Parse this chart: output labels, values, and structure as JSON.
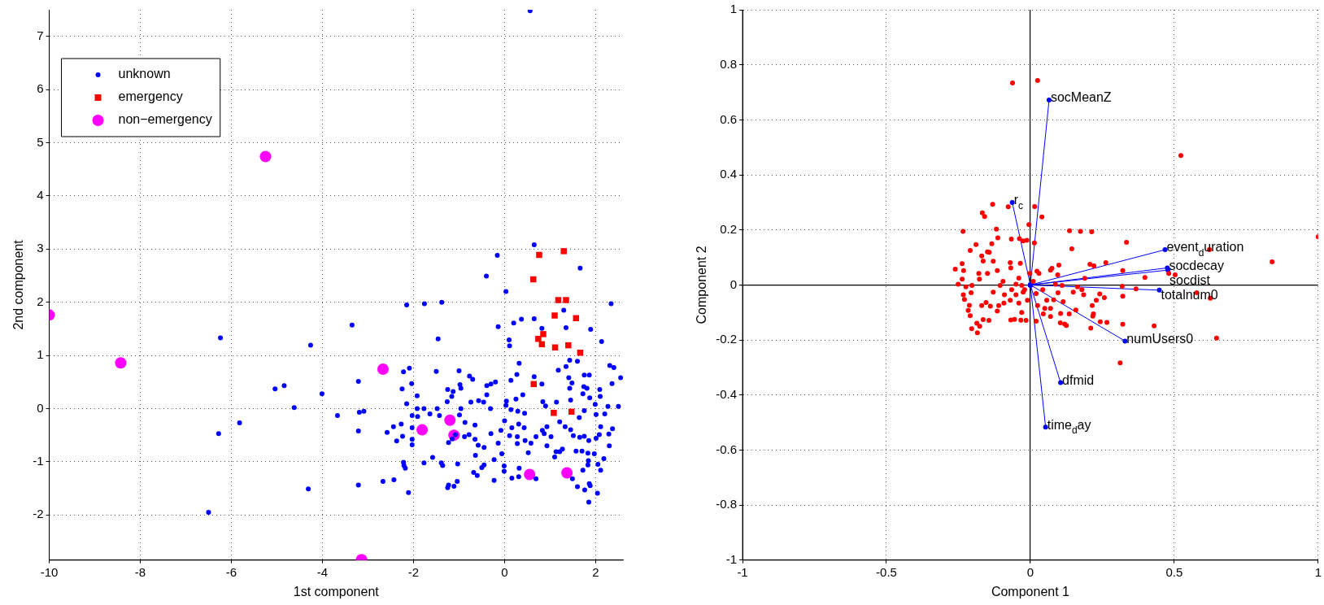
{
  "chart_data": [
    {
      "type": "scatter",
      "xlabel": "1st component",
      "ylabel": "2nd component",
      "xlim": [
        -10,
        2.6
      ],
      "ylim": [
        -2.85,
        7.5
      ],
      "xticks": [
        -10,
        -8,
        -6,
        -4,
        -2,
        0,
        2
      ],
      "yticks": [
        -2,
        -1,
        0,
        1,
        2,
        3,
        4,
        5,
        6,
        7
      ],
      "grid": true,
      "legend": "top left",
      "series": [
        {
          "name": "unknown",
          "color": "#0000ff",
          "marker": "circle",
          "x": [
            0.56,
            -6.5,
            -6.24,
            -6.28,
            -5.82,
            -2.15,
            -1.76,
            -1.38,
            -0.16,
            -0.4,
            0.03,
            0.65,
            1.66,
            2.34,
            -3.35,
            -4.26,
            -1.46,
            -0.14,
            0.2,
            0.37,
            0.65,
            1.3,
            1.89,
            2.13,
            0.1,
            0.11,
            0.82,
            1.35,
            1.6,
            1.43,
            1.18,
            1.35,
            2.31,
            2.4,
            2.55,
            2.36,
            1.75,
            1.86,
            1.41,
            1.48,
            1.43,
            1.74,
            1.81,
            2.09,
            2.1,
            1.99,
            2.27,
            2.5,
            1.72,
            1.87,
            1.45,
            1.14,
            0.84,
            0.9,
            0.65,
            0.82,
            0.32,
            0.27,
            0.14,
            0.4,
            0.25,
            0.04,
            0.03,
            -0.2,
            -0.3,
            -0.39,
            -0.39,
            -0.57,
            -0.46,
            -0.31,
            -0.74,
            -0.7,
            -0.77,
            -1.0,
            -0.96,
            -0.98,
            -1.5,
            -1.25,
            -1.13,
            -1.16,
            -1.26,
            -0.96,
            -1.48,
            -1.77,
            -1.92,
            -2.15,
            -1.92,
            -2.04,
            -2.25,
            -2.09,
            -2.22,
            -3.21,
            -4.01,
            -4.84,
            -5.04,
            -4.62,
            -3.67,
            -3.19,
            -3.09,
            -3.21,
            -2.58,
            -2.44,
            -2.27,
            -2.24,
            -2.37,
            -2.03,
            -2.03,
            -1.91,
            -1.64,
            -1.43,
            -0.99,
            -0.87,
            -0.65,
            -0.78,
            -0.65,
            -0.88,
            -0.58,
            -0.45,
            -0.64,
            -0.45,
            -0.5,
            -0.68,
            -0.6,
            -0.23,
            -0.06,
            -0.14,
            -0.3,
            -0.08,
            0,
            0.14,
            0.29,
            0.44,
            0.16,
            0.31,
            0.43,
            0.28,
            0.11,
            0.28,
            0.45,
            0.58,
            0.69,
            0.83,
            0.93,
            1.02,
            0.87,
            0.93,
            1.13,
            1.27,
            1.45,
            1.51,
            1.65,
            1.75,
            1.85,
            2.01,
            2.08,
            2.11,
            2.29,
            2.37,
            2.3,
            2.2,
            2.01,
            1.75,
            1.64,
            1.21,
            1.33,
            1.57,
            1.7,
            1.83,
            1.97,
            1.84,
            1.83,
            2.05,
            2.18,
            2.11,
            1.72,
            1.6,
            1.76,
            1.86,
            1.88,
            2.04,
            1.85,
            1.49,
            1.21,
            1.1,
            0.69,
            0.52,
            0.32,
            0.31,
            0.16,
            -0.01,
            -0.01,
            -0.23,
            -1.03,
            -1.36,
            -1.39,
            -1.58,
            -1.77,
            -2.22,
            -2.21,
            -2.18,
            -2.11,
            -2.67,
            -2.43,
            -3.21,
            -4.31,
            -1.25,
            -1.23,
            -1.11,
            -1.04,
            -1.23,
            -1.15,
            -1.08,
            -2.03,
            -2.03
          ],
          "values": [
            7.48,
            -1.95,
            1.33,
            -0.47,
            -0.27,
            1.95,
            1.97,
            2.0,
            2.88,
            2.49,
            2.2,
            3.08,
            2.64,
            1.97,
            1.57,
            1.19,
            1.31,
            1.54,
            1.61,
            1.68,
            1.69,
            1.85,
            1.49,
            1.26,
            1.29,
            1.18,
            1.51,
            1.52,
            0.89,
            0.91,
            0.72,
            0.79,
            0.81,
            0.77,
            0.58,
            0.47,
            0.63,
            0.63,
            0.58,
            0.48,
            0.38,
            0.41,
            0.38,
            0.36,
            0.23,
            0.08,
            0.04,
            0.04,
            0.28,
            0.2,
            0.16,
            0.12,
            0.13,
            0.05,
            0.6,
            0.46,
            0.85,
            0.64,
            0.53,
            0.26,
            0.18,
            0.14,
            0.06,
            0.5,
            0.46,
            0.43,
            0.26,
            0.15,
            0.12,
            0.0,
            0.12,
            0.55,
            0.61,
            0.71,
            0.38,
            0.45,
            0.7,
            0.36,
            0.32,
            0.23,
            0.13,
            0.0,
            0.0,
            0.0,
            0.0,
            0.09,
            0.24,
            0.47,
            0.37,
            0.76,
            0.69,
            0.51,
            0.28,
            0.43,
            0.37,
            0.02,
            -0.13,
            -0.07,
            -0.05,
            -0.42,
            -0.45,
            -0.34,
            -0.29,
            -0.52,
            -0.61,
            -0.36,
            -0.13,
            -0.15,
            -0.1,
            -0.13,
            -0.12,
            -0.26,
            -0.31,
            -0.49,
            -0.58,
            -0.53,
            -0.69,
            -0.73,
            -0.88,
            -1.06,
            -1.11,
            -1.2,
            -1.26,
            -0.96,
            -0.85,
            -0.65,
            -0.47,
            -0.41,
            -0.23,
            -0.02,
            -0.05,
            -0.09,
            -0.36,
            -0.29,
            -0.36,
            -0.53,
            -0.51,
            -0.66,
            -0.6,
            -0.65,
            -0.53,
            -0.41,
            -0.34,
            -0.53,
            -0.47,
            -0.7,
            -0.81,
            -0.76,
            -0.4,
            -0.51,
            -0.54,
            -0.52,
            -0.6,
            -0.56,
            -0.49,
            -0.34,
            -0.48,
            -0.38,
            -0.7,
            -0.1,
            -0.11,
            -0.04,
            -0.17,
            -0.25,
            -0.34,
            -0.8,
            -0.8,
            -0.84,
            -0.85,
            -0.98,
            -1.06,
            -1.05,
            -0.94,
            -1.16,
            -1.16,
            -1.47,
            -1.53,
            -1.41,
            -1.45,
            -1.59,
            -1.76,
            -1.32,
            -0.81,
            -0.91,
            -1.32,
            -0.83,
            -1.12,
            -1.28,
            -1.31,
            -1.18,
            -1.08,
            -1.35,
            -1.04,
            -1.07,
            -1.02,
            -0.92,
            -1.02,
            -1.01,
            -1.07,
            -1.12,
            -1.58,
            -1.37,
            -1.34,
            -1.44,
            -1.51,
            -1.49,
            -1.44,
            -1.46,
            -1.37,
            -0.64,
            -0.57,
            -0.49,
            -0.58,
            -0.68
          ]
        },
        {
          "name": "emergency",
          "color": "#ff0000",
          "marker": "square",
          "x": [
            0.76,
            1.3,
            0.63,
            1.18,
            1.35,
            1.1,
            1.57,
            0.85,
            0.74,
            0.82,
            1.11,
            1.4,
            1.66,
            0.64,
            1.08,
            1.47
          ],
          "values": [
            2.89,
            2.96,
            2.43,
            2.04,
            2.04,
            1.75,
            1.7,
            1.4,
            1.31,
            1.21,
            1.15,
            1.19,
            1.05,
            0.46,
            -0.08,
            -0.06
          ]
        },
        {
          "name": "non−emergency",
          "color": "#ff00ff",
          "marker": "circle",
          "x": [
            -10.0,
            -8.43,
            -5.25,
            -2.67,
            -1.81,
            -1.2,
            -1.11,
            0.55,
            1.37,
            -3.14
          ],
          "values": [
            1.76,
            0.86,
            4.74,
            0.74,
            -0.4,
            -0.22,
            -0.5,
            -1.24,
            -1.21,
            -2.84
          ]
        }
      ]
    },
    {
      "type": "scatter",
      "xlabel": "Component 1",
      "ylabel": "Component 2",
      "xlim": [
        -1,
        1
      ],
      "ylim": [
        -1,
        1
      ],
      "xticks": [
        -1,
        -0.5,
        0,
        0.5,
        1
      ],
      "yticks": [
        -1,
        -0.8,
        -0.6,
        -0.4,
        -0.2,
        0,
        0.2,
        0.4,
        0.6,
        0.8,
        1
      ],
      "grid": true,
      "series": [
        {
          "color": "#ff0000",
          "marker": "circle",
          "x": [
            0.025,
            -0.062,
            0.523,
            1.0,
            0.84,
            0.622,
            0.625,
            0.578,
            0.647,
            0.503,
            0.481,
            0.398,
            0.334,
            0.321,
            0.262,
            0.207,
            0.221,
            0.189,
            0.319,
            0.367,
            0.321,
            0.257,
            0.241,
            0.229,
            0.185,
            0.215,
            0.219,
            0.217,
            0.243,
            0.266,
            0.321,
            0.43,
            0.21,
            0.312,
            0.158,
            0.135,
            0.105,
            0.104,
            0.125,
            0.119,
            0.081,
            0.114,
            0.096,
            0.149,
            0.164,
            0.179,
            0.11,
            0.087,
            0.095,
            0.099,
            0.07,
            0.075,
            0.144,
            0.136,
            0.174,
            0.213,
            0.04,
            0.015,
            -0.005,
            -0.012,
            0.014,
            -0.025,
            -0.038,
            -0.066,
            -0.077,
            -0.131,
            -0.167,
            -0.159,
            -0.234,
            -0.209,
            -0.189,
            -0.149,
            -0.143,
            -0.134,
            -0.118,
            -0.113,
            -0.129,
            -0.169,
            -0.164,
            -0.261,
            -0.237,
            -0.232,
            -0.237,
            -0.251,
            -0.224,
            -0.233,
            -0.229,
            -0.203,
            -0.206,
            -0.212,
            -0.216,
            -0.209,
            -0.186,
            -0.204,
            -0.184,
            -0.176,
            -0.164,
            -0.169,
            -0.154,
            -0.139,
            -0.144,
            -0.115,
            -0.11,
            -0.129,
            -0.105,
            -0.179,
            -0.177,
            -0.149,
            -0.115,
            -0.095,
            -0.09,
            -0.092,
            -0.07,
            -0.068,
            -0.055,
            -0.033,
            -0.03,
            -0.015,
            -0.04,
            -0.05,
            -0.065,
            -0.05,
            -0.03,
            -0.02,
            -0.04,
            -0.035,
            -0.068,
            -0.07,
            -0.025,
            -0.01,
            0.02,
            0.025,
            0.02,
            0.05,
            0.045,
            0.07,
            0.07,
            0.057,
            0.03,
            0.023,
            -0.002,
            0.01,
            0.043
          ],
          "values": [
            0.743,
            0.734,
            0.47,
            0.175,
            0.084,
            0.128,
            -0.048,
            -0.028,
            -0.193,
            0.037,
            0.042,
            0.027,
            0.155,
            0.052,
            0.081,
            0.075,
            0.069,
            0.024,
            -0.005,
            -0.014,
            -0.041,
            -0.046,
            -0.033,
            -0.056,
            -0.036,
            -0.075,
            -0.105,
            -0.113,
            -0.134,
            -0.136,
            -0.143,
            -0.149,
            -0.157,
            -0.283,
            -0.091,
            -0.105,
            -0.104,
            -0.138,
            -0.147,
            -0.142,
            -0.054,
            -0.061,
            -0.028,
            -0.026,
            -0.007,
            -0.017,
            -0.002,
            0.003,
            0.037,
            0.072,
            0.054,
            0.06,
            0.131,
            0.197,
            0.195,
            0.193,
            0.247,
            0.285,
            0.219,
            0.162,
            0.153,
            0.16,
            0.168,
            0.167,
            0.284,
            0.293,
            0.262,
            0.249,
            0.195,
            0.125,
            0.147,
            0.12,
            0.119,
            0.15,
            0.203,
            0.171,
            0.086,
            0.105,
            0.087,
            0.057,
            0.077,
            0.052,
            0.021,
            0.003,
            -0.007,
            -0.036,
            -0.053,
            -0.002,
            -0.028,
            -0.074,
            -0.093,
            -0.112,
            -0.139,
            -0.159,
            -0.174,
            -0.15,
            -0.126,
            -0.075,
            -0.064,
            -0.077,
            -0.129,
            -0.095,
            -0.075,
            -0.026,
            -0.002,
            0.042,
            0.021,
            0.042,
            0.052,
            0.013,
            -0.036,
            -0.066,
            -0.056,
            -0.127,
            -0.125,
            -0.128,
            -0.1,
            -0.129,
            -0.066,
            -0.036,
            -0.017,
            0.003,
            -0.002,
            -0.017,
            0.025,
            0.079,
            0.062,
            0.081,
            -0.026,
            -0.056,
            -0.031,
            -0.075,
            -0.132,
            -0.085,
            -0.105,
            -0.115,
            -0.085,
            -0.056,
            0.042,
            0.05,
            0.042,
            0.013,
            -0.017
          ]
        },
        {
          "type": "line",
          "color": "#0000ff",
          "marker": "circle",
          "x": [
            0,
            0.065,
            null,
            0,
            -0.063,
            null,
            0,
            0.468,
            null,
            0,
            0.476,
            null,
            0,
            0.478,
            null,
            0,
            0.448,
            null,
            0,
            0.329,
            null,
            0,
            0.105,
            null,
            0,
            0.053
          ],
          "values": [
            0,
            0.672,
            null,
            0,
            0.3,
            null,
            0,
            0.128,
            null,
            0,
            0.062,
            null,
            0,
            0.054,
            null,
            0,
            -0.019,
            null,
            0,
            -0.204,
            null,
            0,
            -0.355,
            null,
            0,
            -0.517
          ]
        }
      ],
      "annotations": [
        {
          "text": "socMeanZ",
          "x": 0.065,
          "y": 0.672
        },
        {
          "text": "r$_{c}$",
          "x": -0.063,
          "y": 0.3
        },
        {
          "text": "event$_{d}$uration",
          "x": 0.468,
          "y": 0.128
        },
        {
          "text": "socdecay",
          "x": 0.476,
          "y": 0.062
        },
        {
          "text": "socdist",
          "x": 0.478,
          "y": 0.054
        },
        {
          "text": "totalnum0",
          "x": 0.448,
          "y": -0.019
        },
        {
          "text": "numUsers0",
          "x": 0.329,
          "y": -0.204
        },
        {
          "text": "dfmid",
          "x": 0.105,
          "y": -0.355
        },
        {
          "text": "time$_{d}$ay",
          "x": 0.053,
          "y": -0.517
        }
      ]
    }
  ]
}
